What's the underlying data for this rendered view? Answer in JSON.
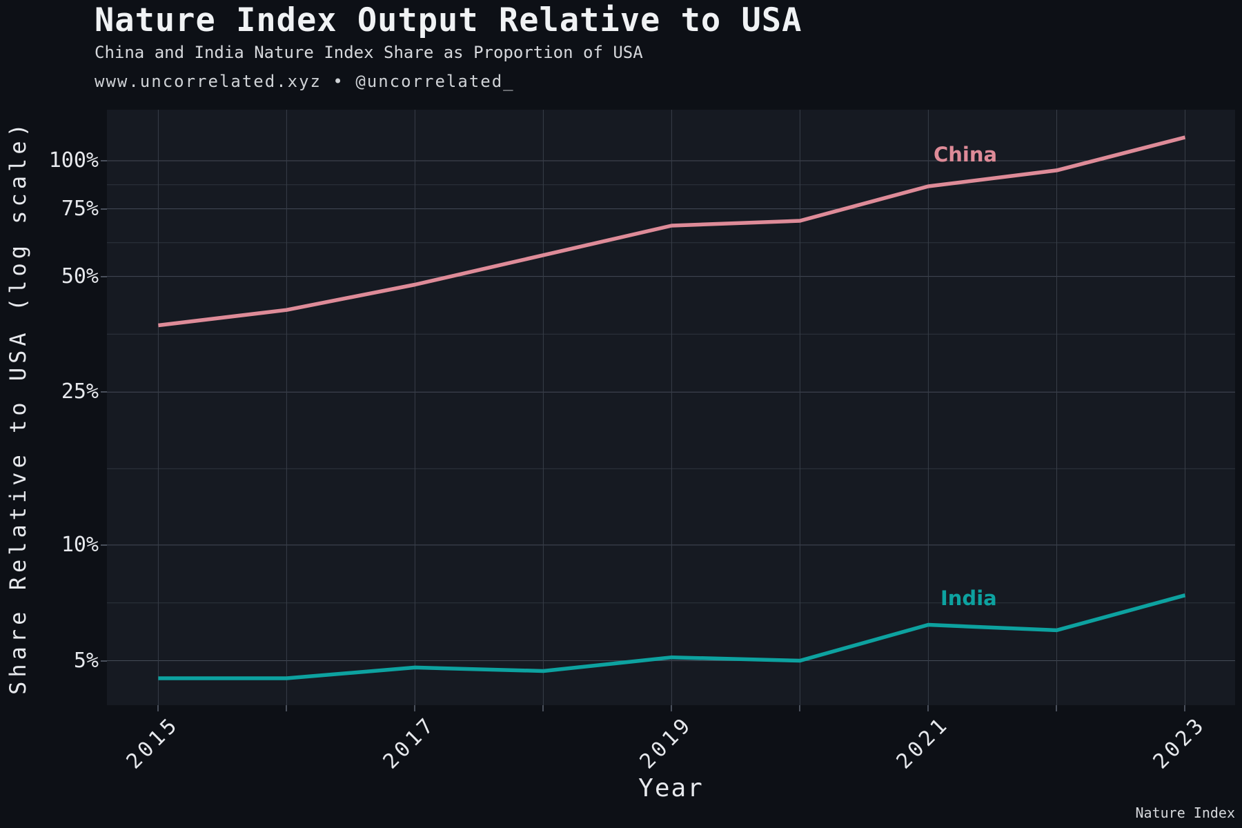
{
  "header": {
    "title": "Nature Index Output Relative to USA",
    "subtitle": "China and India Nature Index Share as Proportion of USA",
    "byline": "www.uncorrelated.xyz • @uncorrelated_"
  },
  "footer": {
    "source": "Nature Index"
  },
  "colors": {
    "background": "#0d1016",
    "plot_background": "#161a22",
    "grid_major": "#454b57",
    "grid_minor": "#2f343e",
    "grid_vertical": "#383e48",
    "tick_color": "#4a505c",
    "tick_text": "#e7e9ed",
    "text_primary": "#f0f2f4",
    "text_secondary": "#d6d8dc",
    "text_tertiary": "#cfd2d6",
    "china": "#de8b98",
    "india": "#0da2a0"
  },
  "chart_data": {
    "type": "line",
    "title": "Nature Index Output Relative to USA",
    "subtitle": "China and India Nature Index Share as Proportion of USA",
    "xlabel": "Year",
    "ylabel": "Share Relative to USA (log scale)",
    "yscale": "log",
    "grid": true,
    "legend": "inline-labels",
    "x": [
      2015,
      2016,
      2017,
      2018,
      2019,
      2020,
      2021,
      2022,
      2023
    ],
    "series": [
      {
        "name": "China",
        "color": "#de8b98",
        "values": [
          37.3,
          40.9,
          47.6,
          56.8,
          67.8,
          69.8,
          85.8,
          94.4,
          115.1
        ]
      },
      {
        "name": "India",
        "color": "#0da2a0",
        "values": [
          4.5,
          4.5,
          4.8,
          4.7,
          5.1,
          5.0,
          6.2,
          6.0,
          7.4
        ]
      }
    ],
    "y_ticks": [
      {
        "value": 100,
        "label": "100%"
      },
      {
        "value": 75,
        "label": "75%"
      },
      {
        "value": 50,
        "label": "50%"
      },
      {
        "value": 25,
        "label": "25%"
      },
      {
        "value": 10,
        "label": "10%"
      },
      {
        "value": 5,
        "label": "5%"
      }
    ],
    "y_minor_gridlines": [
      86.6,
      61.2,
      35.4,
      15.8,
      7.07
    ],
    "x_tick_labels": [
      {
        "value": 2015,
        "label": "2015"
      },
      {
        "value": 2017,
        "label": "2017"
      },
      {
        "value": 2019,
        "label": "2019"
      },
      {
        "value": 2021,
        "label": "2021"
      },
      {
        "value": 2023,
        "label": "2023"
      }
    ],
    "xlim": [
      2014.6,
      2023.39
    ],
    "ylim": [
      3.83,
      135.8
    ]
  }
}
